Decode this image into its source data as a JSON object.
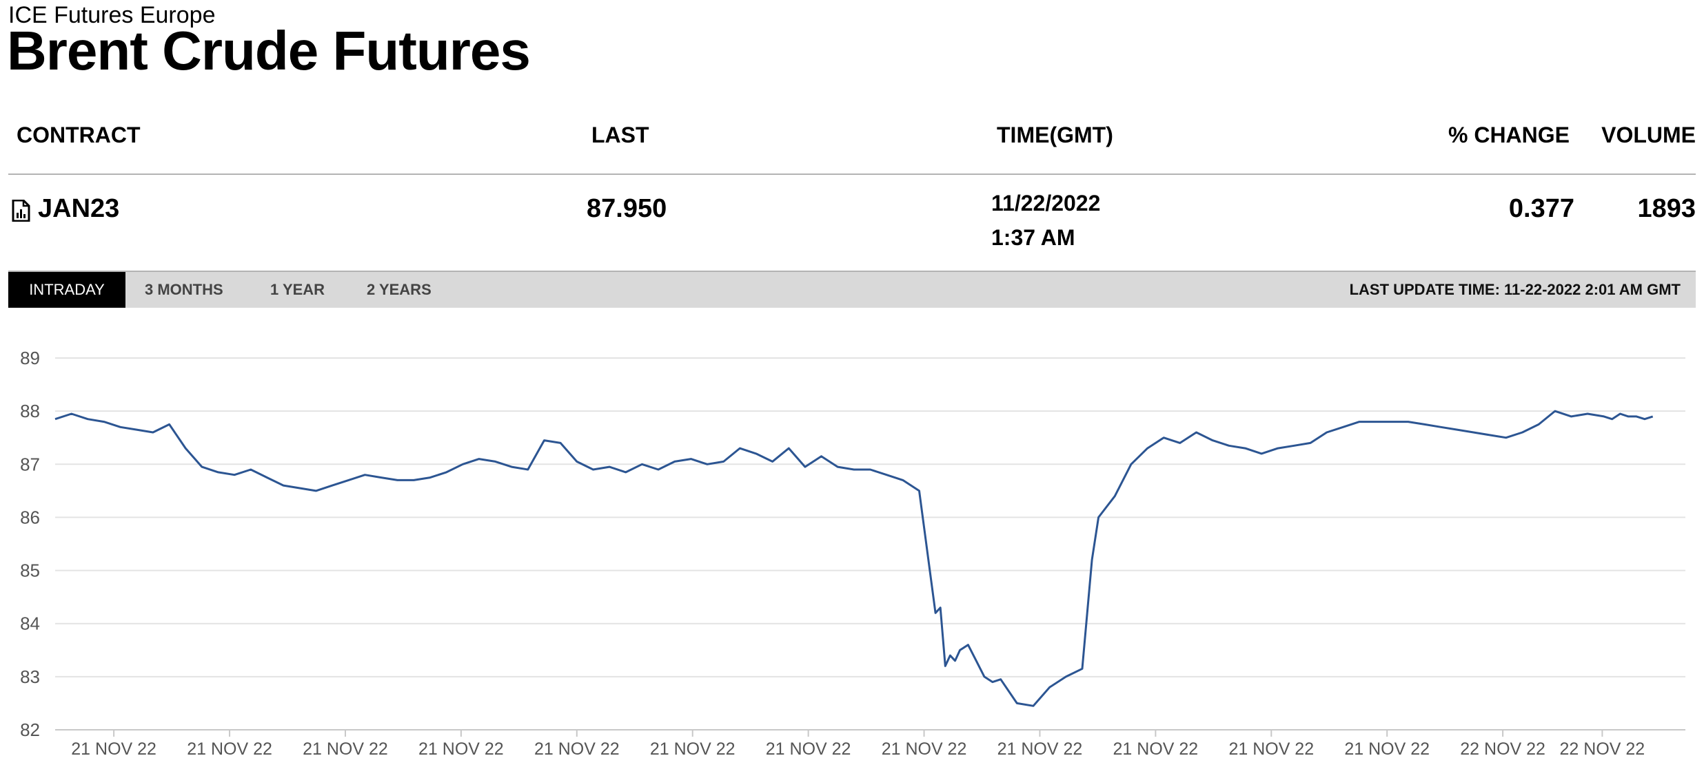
{
  "exchange": "ICE Futures Europe",
  "title": "Brent Crude Futures",
  "table": {
    "headers": {
      "contract": "CONTRACT",
      "last": "LAST",
      "time": "TIME(GMT)",
      "change": "% CHANGE",
      "volume": "VOLUME"
    },
    "row": {
      "icon": "document-chart-icon",
      "contract": "JAN23",
      "last": "87.950",
      "date": "11/22/2022",
      "time": "1:37 AM",
      "change": "0.377",
      "volume": "1893"
    }
  },
  "tabs": [
    {
      "label": "INTRADAY",
      "active": true
    },
    {
      "label": "3 MONTHS",
      "active": false
    },
    {
      "label": "1 YEAR",
      "active": false
    },
    {
      "label": "2 YEARS",
      "active": false
    }
  ],
  "last_update": "LAST UPDATE TIME: 11-22-2022 2:01 AM GMT",
  "colors": {
    "line": "#2c5592",
    "grid": "#e3e3e3",
    "tab_active_bg": "#000000",
    "tab_bar_bg": "#d9d9d9"
  },
  "chart_data": {
    "type": "line",
    "title": "",
    "xlabel": "",
    "ylabel": "",
    "ylim": [
      82,
      89
    ],
    "yticks": [
      82,
      83,
      84,
      85,
      86,
      87,
      88,
      89
    ],
    "xlim": [
      0,
      1
    ],
    "xtick_labels": [
      "21 NOV 22",
      "21 NOV 22",
      "21 NOV 22",
      "21 NOV 22",
      "21 NOV 22",
      "21 NOV 22",
      "21 NOV 22",
      "21 NOV 22",
      "21 NOV 22",
      "21 NOV 22",
      "21 NOV 22",
      "21 NOV 22",
      "22 NOV 22",
      "22 NOV 22"
    ],
    "xtick_positions": [
      0.036,
      0.107,
      0.178,
      0.249,
      0.32,
      0.391,
      0.462,
      0.533,
      0.604,
      0.675,
      0.746,
      0.817,
      0.888,
      0.949
    ],
    "grid": true,
    "series": [
      {
        "x": [
          0.0,
          0.01,
          0.02,
          0.03,
          0.04,
          0.05,
          0.06,
          0.07,
          0.08,
          0.09,
          0.1,
          0.11,
          0.12,
          0.13,
          0.14,
          0.15,
          0.16,
          0.17,
          0.18,
          0.19,
          0.2,
          0.21,
          0.22,
          0.23,
          0.24,
          0.25,
          0.26,
          0.27,
          0.28,
          0.29,
          0.3,
          0.31,
          0.32,
          0.33,
          0.34,
          0.35,
          0.36,
          0.37,
          0.38,
          0.39,
          0.4,
          0.41,
          0.42,
          0.43,
          0.44,
          0.45,
          0.46,
          0.47,
          0.48,
          0.49,
          0.5,
          0.51,
          0.52,
          0.53,
          0.54,
          0.543,
          0.546,
          0.549,
          0.552,
          0.555,
          0.56,
          0.565,
          0.57,
          0.575,
          0.58,
          0.59,
          0.6,
          0.61,
          0.62,
          0.63,
          0.636,
          0.64,
          0.645,
          0.65,
          0.655,
          0.66,
          0.67,
          0.68,
          0.69,
          0.7,
          0.71,
          0.72,
          0.73,
          0.74,
          0.75,
          0.76,
          0.77,
          0.78,
          0.79,
          0.8,
          0.81,
          0.82,
          0.83,
          0.84,
          0.85,
          0.86,
          0.87,
          0.88,
          0.89,
          0.9,
          0.91,
          0.92,
          0.93,
          0.94,
          0.95,
          0.955,
          0.96,
          0.965,
          0.97,
          0.975,
          0.98
        ],
        "y": [
          87.85,
          87.95,
          87.85,
          87.8,
          87.7,
          87.65,
          87.6,
          87.75,
          87.3,
          86.95,
          86.85,
          86.8,
          86.9,
          86.75,
          86.6,
          86.55,
          86.5,
          86.6,
          86.7,
          86.8,
          86.75,
          86.7,
          86.7,
          86.75,
          86.85,
          87.0,
          87.1,
          87.05,
          86.95,
          86.9,
          87.45,
          87.4,
          87.05,
          86.9,
          86.95,
          86.85,
          87.0,
          86.9,
          87.05,
          87.1,
          87.0,
          87.05,
          87.3,
          87.2,
          87.05,
          87.3,
          86.95,
          87.15,
          86.95,
          86.9,
          86.9,
          86.8,
          86.7,
          86.5,
          84.2,
          84.3,
          83.2,
          83.4,
          83.3,
          83.5,
          83.6,
          83.3,
          83.0,
          82.9,
          82.95,
          82.5,
          82.45,
          82.8,
          83.0,
          83.15,
          85.2,
          86.0,
          86.2,
          86.4,
          86.7,
          87.0,
          87.3,
          87.5,
          87.4,
          87.6,
          87.45,
          87.35,
          87.3,
          87.2,
          87.3,
          87.35,
          87.4,
          87.6,
          87.7,
          87.8,
          87.8,
          87.8,
          87.8,
          87.75,
          87.7,
          87.65,
          87.6,
          87.55,
          87.5,
          87.6,
          87.75,
          88.0,
          87.9,
          87.95,
          87.9,
          87.85,
          87.95,
          87.9,
          87.9,
          87.85,
          87.9
        ]
      }
    ]
  }
}
